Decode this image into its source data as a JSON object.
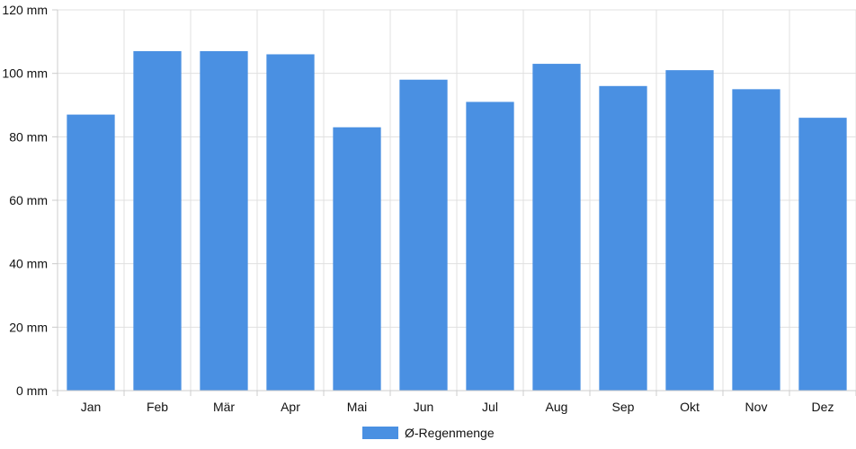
{
  "chart_data": {
    "type": "bar",
    "title": "",
    "xlabel": "",
    "ylabel": "",
    "categories": [
      "Jan",
      "Feb",
      "Mär",
      "Apr",
      "Mai",
      "Jun",
      "Jul",
      "Aug",
      "Sep",
      "Okt",
      "Nov",
      "Dez"
    ],
    "series": [
      {
        "name": "Ø-Regenmenge",
        "values": [
          87,
          107,
          107,
          106,
          83,
          98,
          91,
          103,
          96,
          101,
          95,
          86
        ]
      }
    ],
    "ylim": [
      0,
      120
    ],
    "yticks": [
      0,
      20,
      40,
      60,
      80,
      100,
      120
    ],
    "ytick_labels": [
      "0 mm",
      "20 mm",
      "40 mm",
      "60 mm",
      "80 mm",
      "100 mm",
      "120 mm"
    ],
    "grid": true,
    "legend_position": "bottom-center",
    "colors": {
      "bar": "#4a90e2",
      "grid": "#e0e0e0",
      "axis": "#cccccc"
    }
  }
}
